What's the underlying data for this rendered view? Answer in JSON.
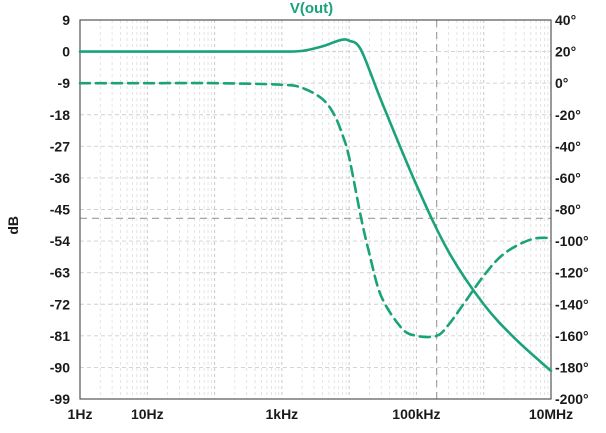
{
  "chart_data": {
    "type": "line",
    "title": "V(out)",
    "xlabel": "",
    "ylabel": "dB",
    "y2label": "",
    "xscale": "log",
    "xlim": [
      1,
      10000000
    ],
    "ylim": [
      -99,
      9
    ],
    "y2lim": [
      -200,
      40
    ],
    "x_tick_labels": [
      "1Hz",
      "10Hz",
      "1kHz",
      "100kHz",
      "10MHz"
    ],
    "x_tick_values": [
      1,
      10,
      1000,
      100000,
      10000000
    ],
    "y_ticks": [
      9,
      0,
      -9,
      -18,
      -27,
      -36,
      -45,
      -54,
      -63,
      -72,
      -81,
      -90,
      -99
    ],
    "y2_ticks": [
      40,
      20,
      0,
      -20,
      -40,
      -60,
      -80,
      -100,
      -120,
      -140,
      -160,
      -180,
      -200
    ],
    "y2_suffix": "°",
    "grid": true,
    "line_color": "#1aa37a",
    "cursor": {
      "x": 200000,
      "y": -47.5
    },
    "series": [
      {
        "axis": "left",
        "style": "solid",
        "x": [
          1,
          10,
          100,
          1000,
          2000,
          4000,
          6000,
          8000,
          10000,
          15000,
          30000,
          100000,
          300000,
          1000000,
          3000000,
          10000000
        ],
        "y": [
          0,
          0,
          0,
          0,
          0.2,
          1.5,
          2.7,
          3.4,
          3.1,
          0.5,
          -14,
          -38,
          -57,
          -72,
          -82,
          -91
        ]
      },
      {
        "axis": "right",
        "style": "dashed",
        "x": [
          1,
          10,
          100,
          1000,
          2000,
          4000,
          6000,
          8000,
          10000,
          15000,
          20000,
          30000,
          60000,
          100000,
          200000,
          300000,
          500000,
          1000000,
          2000000,
          5000000,
          10000000
        ],
        "y": [
          0,
          0,
          0,
          -1,
          -3,
          -10,
          -20,
          -33,
          -47,
          -85,
          -108,
          -135,
          -155,
          -160,
          -160,
          -153,
          -140,
          -122,
          -108,
          -99,
          -98
        ]
      }
    ]
  }
}
